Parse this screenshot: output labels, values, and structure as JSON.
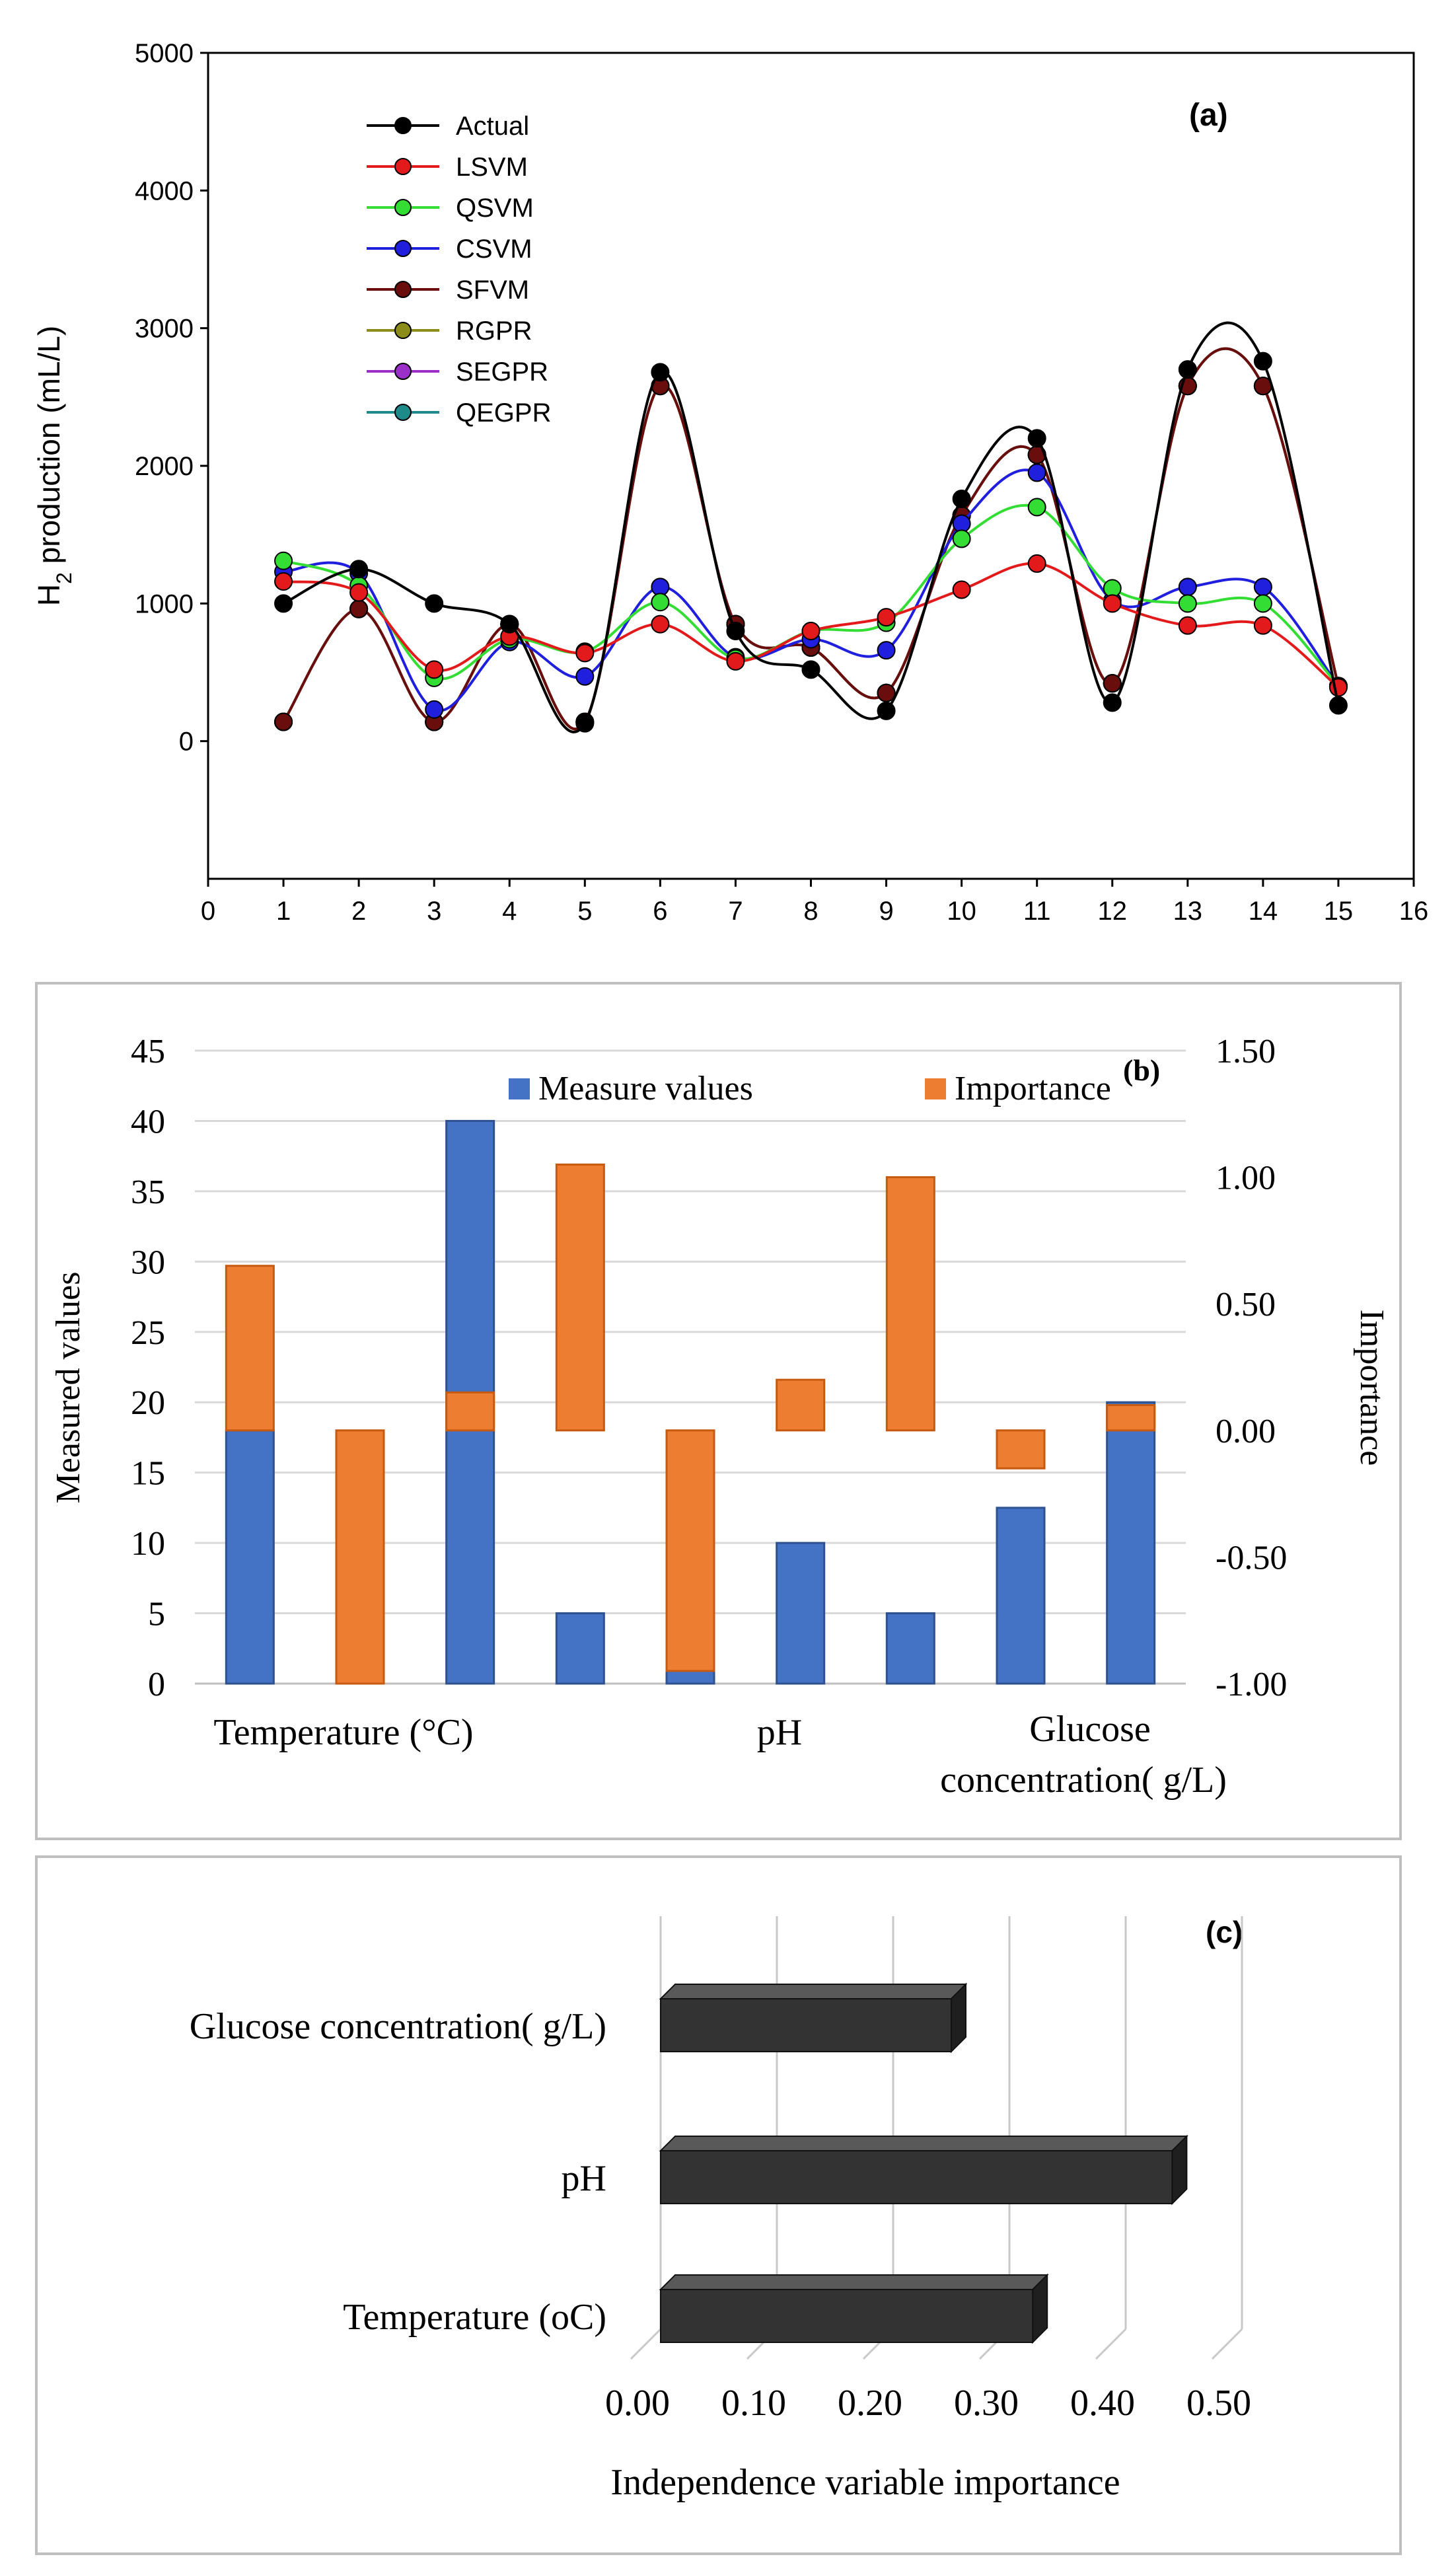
{
  "chart_data": [
    {
      "panel": "a",
      "type": "line",
      "panel_label": "(a)",
      "ylabel_main": "H",
      "ylabel_sub": "2",
      "ylabel_rest": " production (mL/L)",
      "xlim": [
        0,
        16
      ],
      "ylim": [
        -1000,
        5000
      ],
      "xticks": [
        "0",
        "1",
        "2",
        "3",
        "4",
        "5",
        "6",
        "7",
        "8",
        "9",
        "10",
        "11",
        "12",
        "13",
        "14",
        "15",
        "16"
      ],
      "yticks": [
        "0",
        "1000",
        "2000",
        "3000",
        "4000",
        "5000"
      ],
      "x": [
        1,
        2,
        3,
        4,
        5,
        6,
        7,
        8,
        9,
        10,
        11,
        12,
        13,
        14,
        15
      ],
      "series": [
        {
          "name": "Actual",
          "color": "#000000",
          "values": [
            1000,
            1250,
            1000,
            850,
            130,
            2680,
            800,
            520,
            220,
            1760,
            2200,
            280,
            2700,
            2760,
            260
          ]
        },
        {
          "name": "LSVM",
          "color": "#e31a1c",
          "values": [
            1160,
            1080,
            520,
            760,
            640,
            850,
            580,
            800,
            900,
            1100,
            1290,
            1000,
            840,
            840,
            390
          ]
        },
        {
          "name": "QSVM",
          "color": "#33dd33",
          "values": [
            1310,
            1130,
            460,
            740,
            650,
            1010,
            600,
            800,
            860,
            1470,
            1700,
            1110,
            1000,
            1000,
            400
          ]
        },
        {
          "name": "CSVM",
          "color": "#1f1fdd",
          "values": [
            1230,
            1220,
            230,
            720,
            470,
            1120,
            610,
            740,
            660,
            1580,
            1950,
            1020,
            1120,
            1120,
            400
          ]
        },
        {
          "name": "SFVM",
          "color": "#6a0d0d",
          "values": [
            140,
            960,
            140,
            850,
            140,
            2580,
            850,
            680,
            350,
            1640,
            2080,
            420,
            2580,
            2580,
            400
          ]
        },
        {
          "name": "RGPR",
          "color": "#8c8c1a",
          "values": [
            140,
            960,
            140,
            850,
            140,
            2580,
            850,
            680,
            350,
            1640,
            2080,
            420,
            2580,
            2580,
            400
          ]
        },
        {
          "name": "SEGPR",
          "color": "#9b30c8",
          "values": [
            140,
            960,
            140,
            850,
            140,
            2580,
            850,
            680,
            350,
            1640,
            2080,
            420,
            2580,
            2580,
            400
          ]
        },
        {
          "name": "QEGPR",
          "color": "#1f8a8a",
          "values": [
            140,
            960,
            140,
            850,
            140,
            2580,
            850,
            680,
            350,
            1640,
            2080,
            420,
            2580,
            2580,
            400
          ]
        }
      ]
    },
    {
      "panel": "b",
      "type": "bar",
      "panel_label": "(b)",
      "ylabel_left": "Measured values",
      "ylabel_right": "Importance",
      "ylim_left": [
        0,
        45
      ],
      "ylim_right": [
        -1.0,
        1.5
      ],
      "yticks_left": [
        "0",
        "5",
        "10",
        "15",
        "20",
        "25",
        "30",
        "35",
        "40",
        "45"
      ],
      "yticks_right": [
        "-1.00",
        "-0.50",
        "0.00",
        "0.50",
        "1.00",
        "1.50"
      ],
      "categories": [
        "Temperature (°C)",
        "pH",
        "Glucose",
        "concentration( g/L)"
      ],
      "legend": [
        {
          "name": "Measure values",
          "color": "#4472c4"
        },
        {
          "name": "Importance",
          "color": "#ed7d31"
        }
      ],
      "measure_values": [
        18,
        3,
        40,
        5,
        2.5,
        10,
        5,
        12.5,
        20
      ],
      "importance_values": [
        0.65,
        -1.0,
        0.15,
        1.05,
        -0.95,
        0.2,
        1.0,
        -0.15,
        0.1
      ]
    },
    {
      "panel": "c",
      "type": "bar",
      "orientation": "horizontal",
      "panel_label": "(c)",
      "xlabel": "Independence variable importance",
      "xlim": [
        0,
        0.5
      ],
      "xticks": [
        "0.00",
        "0.10",
        "0.20",
        "0.30",
        "0.40",
        "0.50"
      ],
      "categories": [
        "Glucose concentration( g/L)",
        "pH",
        "Temperature (oC)"
      ],
      "values": [
        0.25,
        0.44,
        0.32
      ],
      "color": "#333333"
    }
  ]
}
